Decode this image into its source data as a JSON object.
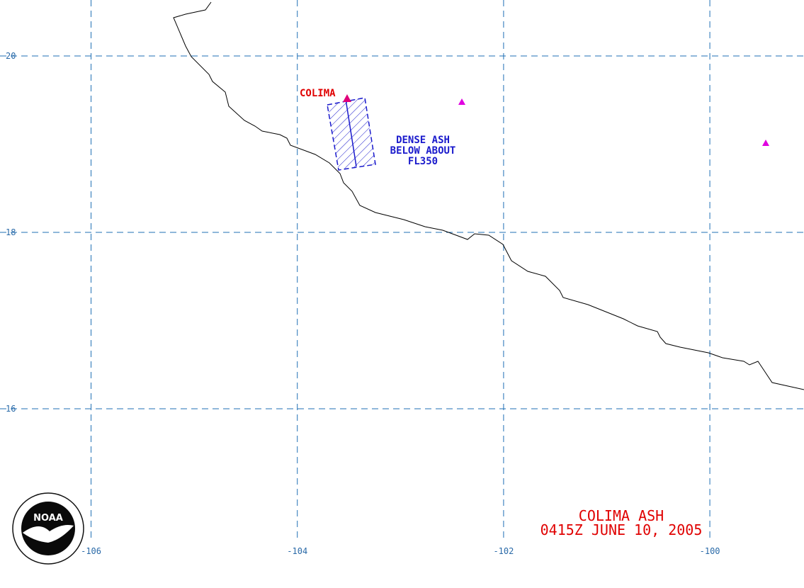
{
  "map": {
    "xlim": [
      -106.883,
      -99.087
    ],
    "ylim": [
      14.53,
      20.635
    ],
    "xticks": [
      -106,
      -104,
      -102,
      -100
    ],
    "yticks": [
      20,
      18,
      16
    ],
    "volcano_label": "COLIMA",
    "ash_label": [
      "DENSE ASH",
      "BELOW ABOUT",
      "FL350"
    ],
    "title": "COLIMA ASH",
    "subtitle": "0415Z JUNE 10, 2005",
    "logo_text": "NOAA"
  }
}
